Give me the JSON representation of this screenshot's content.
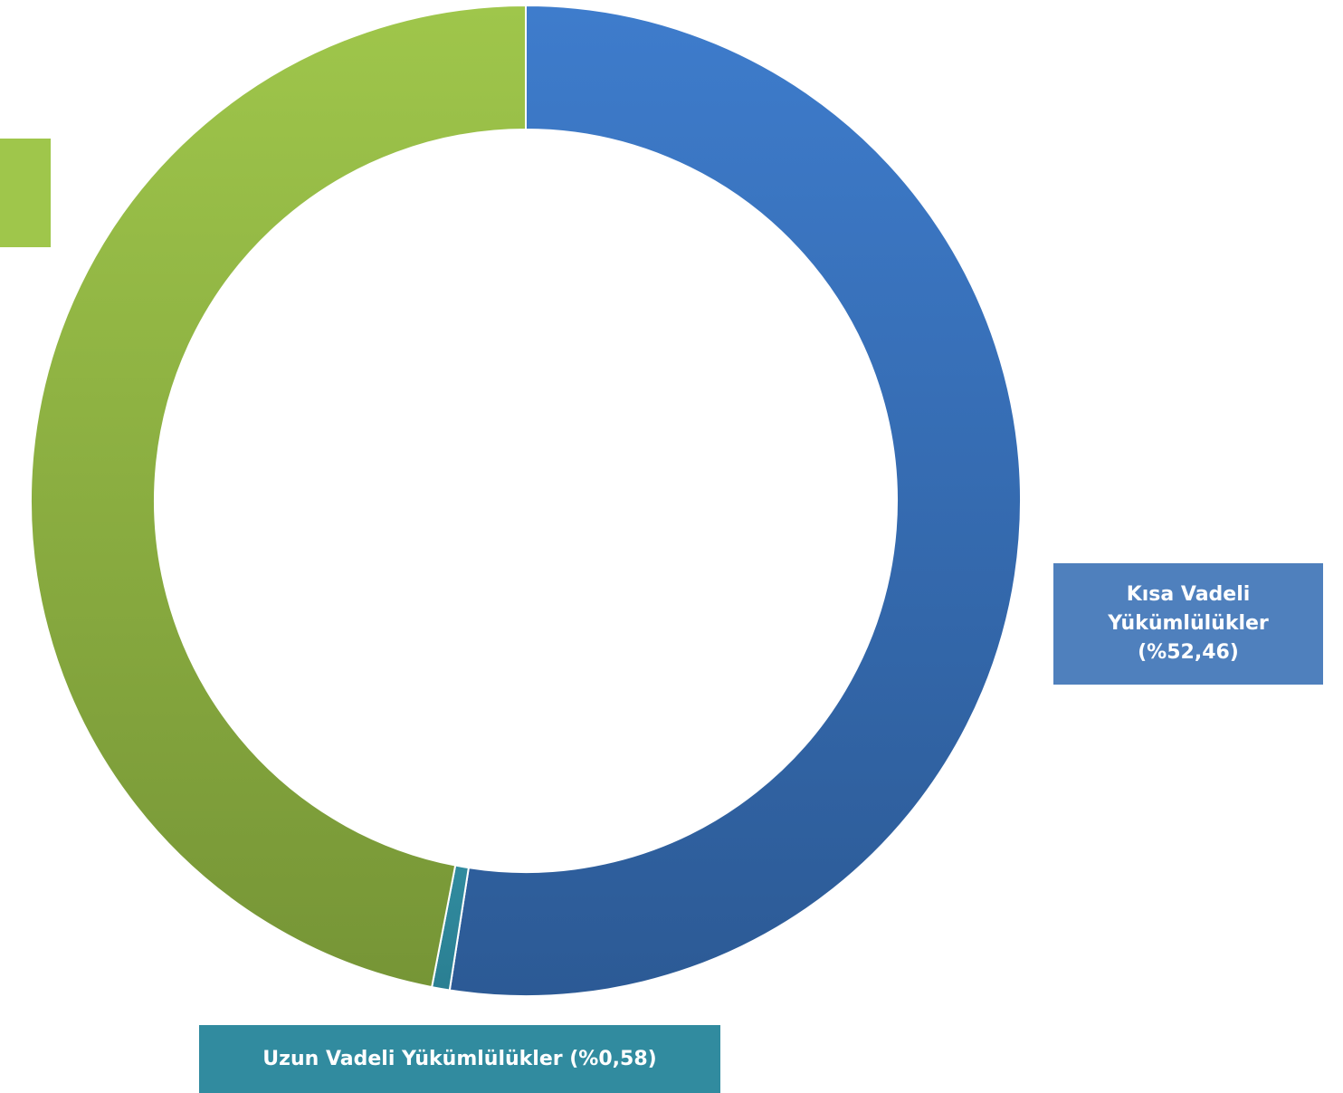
{
  "chart_data": {
    "type": "pie",
    "style": "donut",
    "title": "",
    "slices": [
      {
        "name": "Kısa Vadeli Yükümlülükler",
        "value": 52.46,
        "label_lines": [
          "Kısa Vadeli",
          "Yükümlülükler",
          "(%52,46)"
        ],
        "color_top": "#3e7ccc",
        "color_bottom": "#2c5a95"
      },
      {
        "name": "Uzun Vadeli Yükümlülükler",
        "value": 0.58,
        "label": "Uzun Vadeli Yükümlülükler (%0,58)",
        "color_top": "#318b9f",
        "color_bottom": "#2a7f92"
      },
      {
        "name": "",
        "value": 46.96,
        "label": "",
        "color_top": "#9fc64b",
        "color_bottom": "#769536"
      }
    ],
    "legend": "none"
  }
}
